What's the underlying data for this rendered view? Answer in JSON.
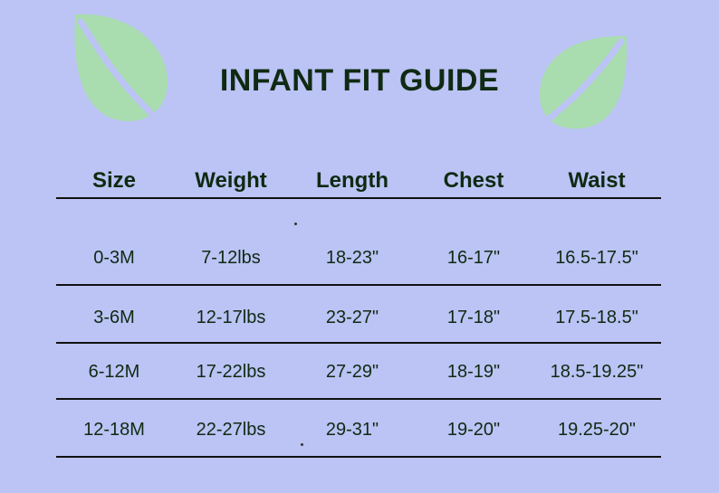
{
  "title": "INFANT FIT GUIDE",
  "colors": {
    "background": "#bcc3f5",
    "text": "#0f2a12",
    "leaf": "#a9ddb0"
  },
  "icons": [
    "leaf-icon",
    "leaf-icon"
  ],
  "table": {
    "headers": [
      "Size",
      "Weight",
      "Length",
      "Chest",
      "Waist"
    ],
    "rows": [
      [
        "0-3M",
        "7-12lbs",
        "18-23\"",
        "16-17\"",
        "16.5-17.5\""
      ],
      [
        "3-6M",
        "12-17lbs",
        "23-27\"",
        "17-18\"",
        "17.5-18.5\""
      ],
      [
        "6-12M",
        "17-22lbs",
        "27-29\"",
        "18-19\"",
        "18.5-19.25\""
      ],
      [
        "12-18M",
        "22-27lbs",
        "29-31\"",
        "19-20\"",
        "19.25-20\""
      ]
    ]
  }
}
